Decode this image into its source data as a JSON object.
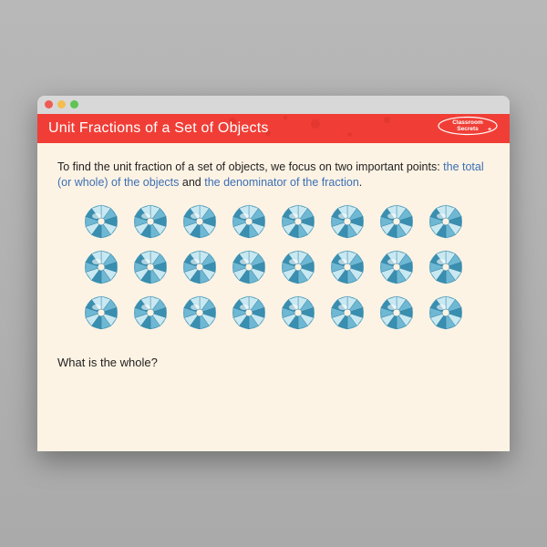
{
  "window": {
    "traffic_light_colors": [
      "#ee5c54",
      "#f4bd4f",
      "#5fc454"
    ],
    "titlebar_bg": "#d8d8d8"
  },
  "header": {
    "title": "Unit Fractions of a Set of Objects",
    "bg_color": "#f03e36",
    "accent_dot_color": "#d62f28",
    "logo_text_top": "Classroom",
    "logo_text_bottom": "Secrets",
    "logo_color": "#ffffff"
  },
  "content": {
    "bg_color": "#fdf3e4",
    "text_color": "#222222",
    "highlight_color": "#3b6fb5",
    "intro_part1": "To find the unit fraction of a set of objects, we focus on two important points: ",
    "intro_hl1": "the total (or whole) of the objects",
    "intro_mid": " and ",
    "intro_hl2": "the denominator of the fraction",
    "intro_end": ".",
    "question": "What is the whole?"
  },
  "gems": {
    "rows": 3,
    "cols": 8,
    "base_color": "#6fb8d4",
    "light_color": "#c8e8f2",
    "dark_color": "#3a8fb0",
    "center_color": "#fdf3e4",
    "stroke_color": "#2b7a99"
  }
}
